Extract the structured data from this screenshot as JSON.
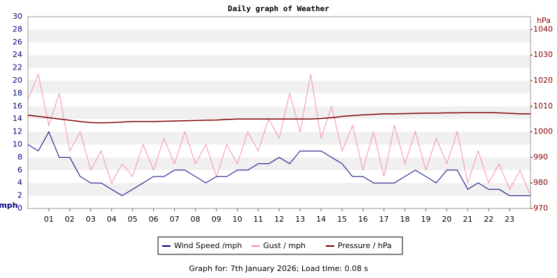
{
  "chart_data": {
    "type": "line",
    "title": "Daily graph of Weather",
    "y_label": "mph",
    "y2_label": "hPa",
    "footer": "Graph for: 7th January 2026; Load time: 0.08 s",
    "x": [
      0,
      0.5,
      1,
      1.5,
      2,
      2.5,
      3,
      3.5,
      4,
      4.5,
      5,
      5.5,
      6,
      6.5,
      7,
      7.5,
      8,
      8.5,
      9,
      9.5,
      10,
      10.5,
      11,
      11.5,
      12,
      12.5,
      13,
      13.5,
      14,
      14.5,
      15,
      15.5,
      16,
      16.5,
      17,
      17.5,
      18,
      18.5,
      19,
      19.5,
      20,
      20.5,
      21,
      21.5,
      22,
      22.5,
      23,
      23.5,
      24
    ],
    "xlim": [
      0,
      24
    ],
    "xticks": [
      {
        "value": 1,
        "label": "01"
      },
      {
        "value": 2,
        "label": "02"
      },
      {
        "value": 3,
        "label": "03"
      },
      {
        "value": 4,
        "label": "04"
      },
      {
        "value": 5,
        "label": "05"
      },
      {
        "value": 6,
        "label": "06"
      },
      {
        "value": 7,
        "label": "07"
      },
      {
        "value": 8,
        "label": "08"
      },
      {
        "value": 9,
        "label": "09"
      },
      {
        "value": 10,
        "label": "10"
      },
      {
        "value": 11,
        "label": "11"
      },
      {
        "value": 12,
        "label": "12"
      },
      {
        "value": 13,
        "label": "13"
      },
      {
        "value": 14,
        "label": "14"
      },
      {
        "value": 15,
        "label": "15"
      },
      {
        "value": 16,
        "label": "16"
      },
      {
        "value": 17,
        "label": "17"
      },
      {
        "value": 18,
        "label": "18"
      },
      {
        "value": 19,
        "label": "19"
      },
      {
        "value": 20,
        "label": "20"
      },
      {
        "value": 21,
        "label": "21"
      },
      {
        "value": 22,
        "label": "22"
      },
      {
        "value": 23,
        "label": "23"
      }
    ],
    "ylim": [
      0,
      30
    ],
    "yticks": [
      0,
      2,
      4,
      6,
      8,
      10,
      12,
      14,
      16,
      18,
      20,
      22,
      24,
      26,
      28,
      30
    ],
    "y2lim": [
      970,
      1045
    ],
    "y2ticks": [
      970,
      980,
      990,
      1000,
      1010,
      1020,
      1030,
      1040
    ],
    "grid": true,
    "series": [
      {
        "name": "Wind Speed /mph",
        "color": "#000080",
        "axis": "y",
        "values": [
          10,
          9,
          12,
          8,
          8,
          5,
          4,
          4,
          3,
          2,
          3,
          4,
          5,
          5,
          6,
          6,
          5,
          4,
          5,
          5,
          6,
          6,
          7,
          7,
          8,
          7,
          9,
          9,
          9,
          8,
          7,
          5,
          5,
          4,
          4,
          4,
          5,
          6,
          5,
          4,
          6,
          6,
          3,
          4,
          3,
          3,
          2,
          2,
          2
        ]
      },
      {
        "name": "Gust / mph",
        "color": "#f78fb3",
        "axis": "y",
        "values": [
          17,
          21,
          13,
          18,
          9,
          12,
          6,
          9,
          4,
          7,
          5,
          10,
          6,
          11,
          7,
          12,
          7,
          10,
          5,
          10,
          7,
          12,
          9,
          14,
          11,
          18,
          12,
          21,
          11,
          16,
          9,
          13,
          6,
          12,
          5,
          13,
          7,
          12,
          6,
          11,
          7,
          12,
          4,
          9,
          4,
          7,
          3,
          6,
          2
        ]
      },
      {
        "name": "Pressure / hPa",
        "color": "#800000",
        "axis": "y2",
        "values": [
          1006.5,
          1006,
          1005.5,
          1005,
          1004.5,
          1004,
          1003.6,
          1003.5,
          1003.6,
          1003.8,
          1004,
          1004,
          1004,
          1004.1,
          1004.2,
          1004.3,
          1004.4,
          1004.5,
          1004.6,
          1004.8,
          1005,
          1005,
          1005,
          1005,
          1005,
          1005,
          1005,
          1005,
          1005.2,
          1005.5,
          1006,
          1006.3,
          1006.6,
          1006.8,
          1007,
          1007,
          1007.1,
          1007.2,
          1007.3,
          1007.3,
          1007.4,
          1007.4,
          1007.5,
          1007.5,
          1007.5,
          1007.4,
          1007.2,
          1007,
          1007
        ]
      }
    ]
  }
}
